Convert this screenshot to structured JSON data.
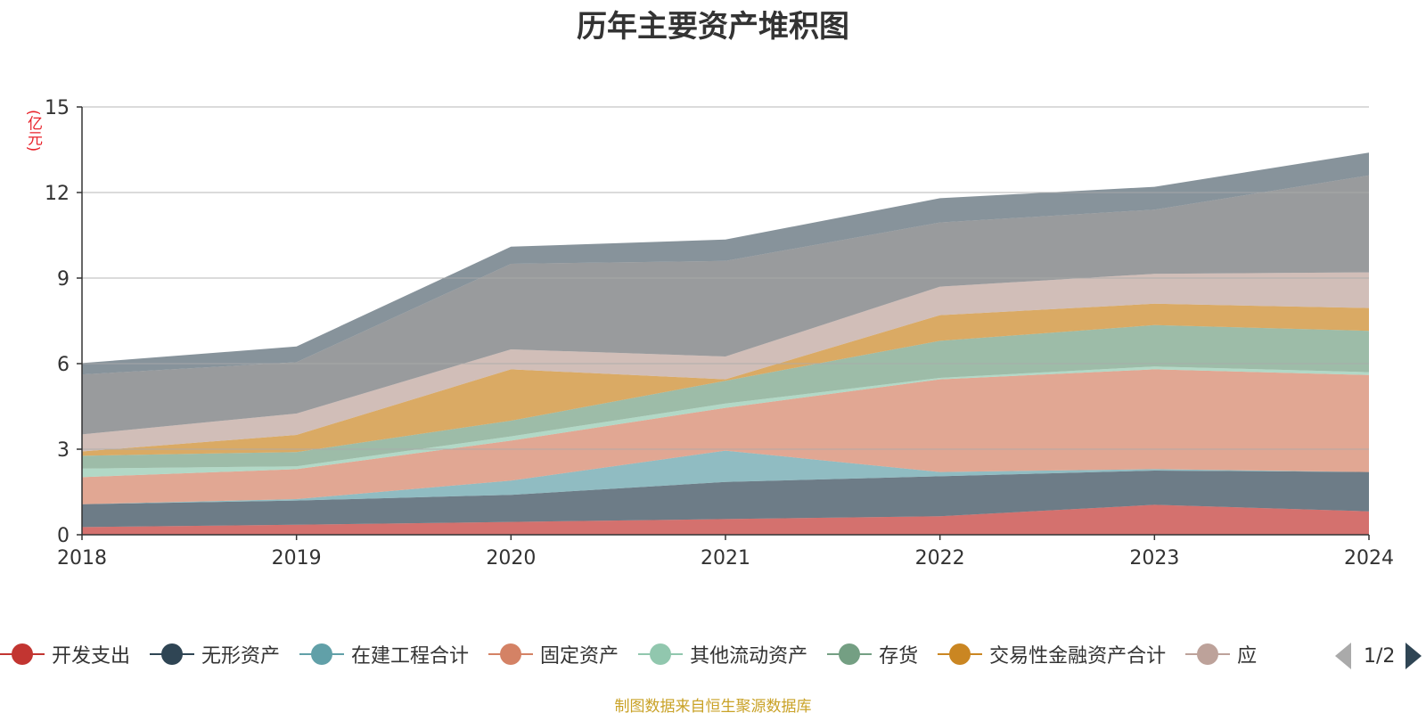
{
  "chart_data": {
    "type": "area",
    "stacked": true,
    "title": "历年主要资产堆积图",
    "unit": "(亿元)",
    "x": [
      "2018",
      "2019",
      "2020",
      "2021",
      "2022",
      "2023",
      "2024"
    ],
    "ylim": [
      0,
      15
    ],
    "yticks": [
      0,
      3,
      6,
      9,
      12,
      15
    ],
    "grid": true,
    "series": [
      {
        "name": "开发支出",
        "color": "#c23531",
        "legend_visible": true,
        "values": [
          0.27,
          0.35,
          0.45,
          0.55,
          0.65,
          1.05,
          0.82
        ]
      },
      {
        "name": "无形资产",
        "color": "#2f4554",
        "legend_visible": true,
        "values": [
          0.8,
          0.85,
          0.95,
          1.3,
          1.4,
          1.2,
          1.38
        ]
      },
      {
        "name": "在建工程合计",
        "color": "#61a0a8",
        "legend_visible": true,
        "values": [
          0.0,
          0.05,
          0.5,
          1.1,
          0.15,
          0.05,
          0.0
        ]
      },
      {
        "name": "固定资产",
        "color": "#d48265",
        "legend_visible": true,
        "values": [
          0.95,
          1.05,
          1.4,
          1.5,
          3.25,
          3.5,
          3.4
        ]
      },
      {
        "name": "其他流动资产",
        "color": "#91c7ae",
        "legend_visible": true,
        "values": [
          0.3,
          0.1,
          0.15,
          0.15,
          0.05,
          0.1,
          0.1
        ]
      },
      {
        "name": "存货",
        "color": "#749f83",
        "legend_visible": true,
        "values": [
          0.45,
          0.5,
          0.55,
          0.8,
          1.3,
          1.45,
          1.45
        ]
      },
      {
        "name": "交易性金融资产合计",
        "color": "#ca8622",
        "legend_visible": true,
        "values": [
          0.15,
          0.6,
          1.8,
          0.05,
          0.9,
          0.75,
          0.8
        ]
      },
      {
        "name": "应",
        "color": "#bda29a",
        "legend_visible": true,
        "values": [
          0.6,
          0.75,
          0.7,
          0.8,
          1.0,
          1.05,
          1.25
        ]
      },
      {
        "name": "",
        "color": "#6e7074",
        "legend_visible": false,
        "values": [
          2.1,
          1.8,
          3.0,
          3.35,
          2.25,
          2.25,
          3.4
        ]
      },
      {
        "name": "",
        "color": "#546570",
        "legend_visible": false,
        "values": [
          0.4,
          0.55,
          0.6,
          0.75,
          0.85,
          0.8,
          0.8
        ]
      }
    ]
  },
  "legend": {
    "pager_text": "1/2"
  },
  "footer": {
    "source": "制图数据来自恒生聚源数据库"
  }
}
